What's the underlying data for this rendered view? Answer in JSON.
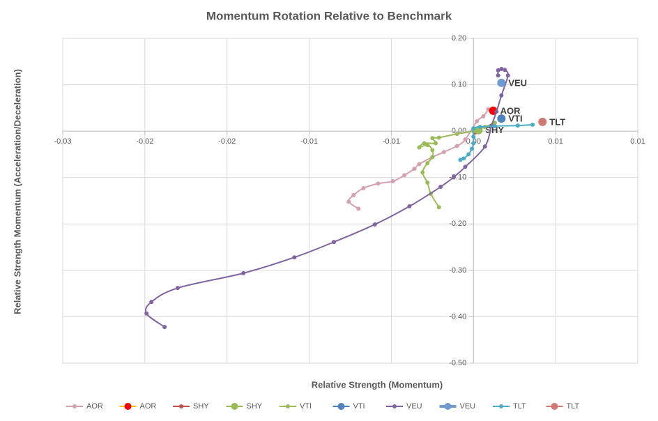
{
  "chart_data": {
    "type": "scatter",
    "title": "Momentum Rotation Relative to Benchmark",
    "x_label": "Relative Strength (Momentum)",
    "y_label": "Relative Strength Momentum (Acceleration/Deceleration)",
    "xlim": [
      -0.025,
      0.01
    ],
    "ylim": [
      -0.5,
      0.2
    ],
    "xticks": [
      {
        "value": -0.025,
        "label": "-0.03"
      },
      -0.02,
      {
        "value": -0.015,
        "label": "-0.02"
      },
      -0.01,
      {
        "value": -0.005,
        "label": "-0.01"
      },
      {
        "value": 0,
        "label": "0.00"
      },
      {
        "value": 0.005,
        "label": "0.01"
      },
      0.01
    ],
    "yticks": [
      {
        "value": 0.2,
        "label": "0.20"
      },
      {
        "value": 0.1,
        "label": "0.10"
      },
      {
        "value": 0,
        "label": "0.00"
      },
      {
        "value": -0.1,
        "label": "-0.10"
      },
      {
        "value": -0.2,
        "label": "-0.20"
      },
      {
        "value": -0.3,
        "label": "-0.30"
      },
      {
        "value": -0.4,
        "label": "-0.40"
      },
      {
        "value": -0.5,
        "label": "-0.50"
      }
    ],
    "grid": true,
    "legend": "bottom",
    "series": [
      {
        "name": "AOR",
        "color": "#d4a0ad",
        "line_color": "#d4a0ad",
        "kind": "trail",
        "x": [
          -0.007,
          -0.0076,
          -0.0073,
          -0.0067,
          -0.0058,
          -0.0049,
          -0.0042,
          -0.0036,
          -0.0033,
          -0.0025,
          -0.0018,
          -0.001,
          -0.0005,
          0.0002,
          0.0006,
          0.0009
        ],
        "values": [
          -0.167,
          -0.152,
          -0.138,
          -0.123,
          -0.113,
          -0.108,
          -0.095,
          -0.081,
          -0.071,
          -0.056,
          -0.045,
          -0.032,
          -0.018,
          0.021,
          0.032,
          0.047
        ]
      },
      {
        "name": "AOR",
        "color": "#ff0000",
        "line_color": "#ffc000",
        "kind": "head",
        "x": [
          0.0012
        ],
        "values": [
          0.044
        ]
      },
      {
        "name": "SHY",
        "color": "#c0504d",
        "line_color": "#c0504d",
        "kind": "trail",
        "x": [
          0.0001,
          0.0002,
          0.0003
        ],
        "values": [
          -0.003,
          -0.001,
          0.001
        ]
      },
      {
        "name": "SHY",
        "color": "#9bbb59",
        "line_color": "#9bbb59",
        "kind": "head",
        "x": [
          0.0003
        ],
        "values": [
          0.002
        ]
      },
      {
        "name": "VTI",
        "color": "#9bbb59",
        "line_color": "#9bbb59",
        "kind": "trail",
        "x": [
          -0.0021,
          -0.0026,
          -0.0028,
          -0.0031,
          -0.0028,
          -0.0025,
          -0.0025,
          -0.0028,
          -0.0033,
          -0.003,
          -0.0023,
          -0.0025,
          -0.0021,
          -0.001,
          0.0,
          0.0007,
          0.0013
        ],
        "values": [
          -0.164,
          -0.135,
          -0.111,
          -0.089,
          -0.069,
          -0.056,
          -0.041,
          -0.03,
          -0.035,
          -0.026,
          -0.026,
          -0.015,
          -0.014,
          -0.006,
          0.0,
          0.009,
          0.018
        ]
      },
      {
        "name": "VTI",
        "color": "#4f81bd",
        "line_color": "#4f81bd",
        "kind": "head",
        "x": [
          0.0017
        ],
        "values": [
          0.027
        ]
      },
      {
        "name": "VEU",
        "color": "#8064a2",
        "line_color": "#8064a2",
        "kind": "trail",
        "x": [
          -0.0188,
          -0.0199,
          -0.0196,
          -0.018,
          -0.014,
          -0.0109,
          -0.0085,
          -0.006,
          -0.0039,
          -0.002,
          -0.0012,
          -0.0005,
          0.0007,
          0.0011,
          0.0014,
          0.0017,
          0.0021,
          0.0019,
          0.0017,
          0.0015,
          0.0015
        ],
        "values": [
          -0.422,
          -0.393,
          -0.368,
          -0.338,
          -0.306,
          -0.272,
          -0.239,
          -0.201,
          -0.162,
          -0.12,
          -0.099,
          -0.077,
          -0.033,
          0.012,
          0.042,
          0.077,
          0.12,
          0.132,
          0.134,
          0.131,
          0.12
        ]
      },
      {
        "name": "VEU",
        "color": "#6f9bd1",
        "line_color": "#6f9bd1",
        "kind": "head",
        "x": [
          0.0017
        ],
        "values": [
          0.104
        ]
      },
      {
        "name": "TLT",
        "color": "#4bacc6",
        "line_color": "#4bacc6",
        "kind": "trail",
        "x": [
          -0.0008,
          -0.0006,
          -0.0003,
          -0.0001,
          0.0,
          0.0,
          0.0,
          0.0004,
          0.0013,
          0.0027,
          0.0036
        ],
        "values": [
          -0.062,
          -0.059,
          -0.05,
          -0.038,
          -0.026,
          -0.012,
          0.006,
          0.009,
          0.011,
          0.012,
          0.014
        ]
      },
      {
        "name": "TLT",
        "color": "#d07a74",
        "line_color": "#d07a74",
        "kind": "head",
        "x": [
          0.0042
        ],
        "values": [
          0.02
        ]
      }
    ]
  }
}
